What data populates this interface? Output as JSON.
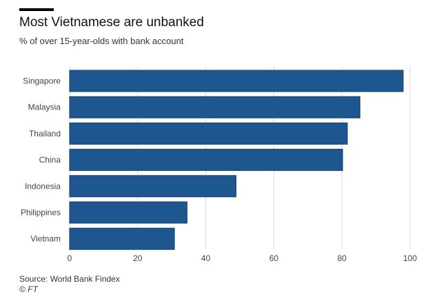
{
  "header": {
    "title": "Most Vietnamese are unbanked",
    "subtitle": "% of over 15-year-olds with bank account"
  },
  "footer": {
    "source": "Source: World Bank Findex",
    "credit": "© FT"
  },
  "colors": {
    "bar": "#1e5690",
    "bar_border": "#163f6b",
    "grid": "#d9d9d9",
    "tick_text": "#444444"
  },
  "chart_data": {
    "type": "bar",
    "orientation": "horizontal",
    "categories": [
      "Singapore",
      "Malaysia",
      "Thailand",
      "China",
      "Indonesia",
      "Philippines",
      "Vietnam"
    ],
    "values": [
      98,
      85.3,
      81.6,
      80.2,
      48.9,
      34.5,
      30.8
    ],
    "xlim": [
      0,
      100
    ],
    "xticks": [
      0,
      20,
      40,
      60,
      80,
      100
    ],
    "grid": "vertical",
    "legend": "none"
  }
}
